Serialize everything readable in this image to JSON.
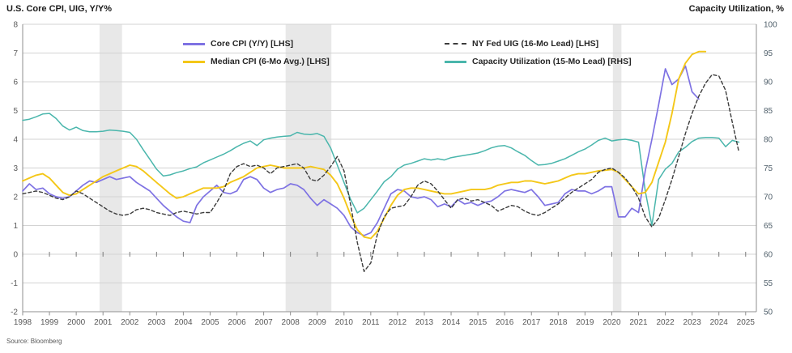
{
  "header": {
    "left_title": "U.S. Core CPI, UIG, Y/Y%",
    "right_title": "Capacity Utilization, %"
  },
  "source": "Source: Bloomberg",
  "legend": [
    {
      "label": "Core CPI (Y/Y) [LHS]",
      "color": "#7e72e3",
      "dash": false
    },
    {
      "label": "Median CPI (6-Mo Avg.) [LHS]",
      "color": "#f4c718",
      "dash": false
    },
    {
      "label": "NY Fed UIG (16-Mo Lead) [LHS]",
      "color": "#3c3c3c",
      "dash": true
    },
    {
      "label": "Capacity Utilization (15-Mo Lead) [RHS]",
      "color": "#4ab6ac",
      "dash": false
    }
  ],
  "chart_data": {
    "type": "line",
    "title": "U.S. Core CPI, UIG, Y/Y%",
    "x_axis": {
      "min": 1998,
      "max": 2025.4,
      "ticks": [
        1998,
        1999,
        2000,
        2001,
        2002,
        2003,
        2004,
        2005,
        2006,
        2007,
        2008,
        2009,
        2010,
        2011,
        2012,
        2013,
        2014,
        2015,
        2016,
        2017,
        2018,
        2019,
        2020,
        2021,
        2022,
        2023,
        2024,
        2025
      ]
    },
    "y_left": {
      "label": "U.S. Core CPI, UIG, Y/Y%",
      "min": -2,
      "max": 8,
      "ticks": [
        8,
        7,
        6,
        5,
        4,
        3,
        2,
        1,
        0,
        -1,
        -2
      ]
    },
    "y_right": {
      "label": "Capacity Utilization, %",
      "min": 50,
      "max": 100,
      "ticks": [
        100,
        95,
        90,
        85,
        80,
        75,
        70,
        65,
        60,
        55,
        50
      ]
    },
    "grid": true,
    "legend_position": "top-inside",
    "recession_bands": [
      [
        2000.87,
        2001.71
      ],
      [
        2007.82,
        2009.53
      ],
      [
        2020.04,
        2020.36
      ]
    ],
    "colors": {
      "band": "#e8e8e8",
      "grid": "#d3d3d3",
      "axis": "#8f8f8f",
      "zero_tick": "#7a7a7a"
    },
    "series": [
      {
        "name": "Capacity Utilization (15-Mo Lead) [RHS]",
        "id": "capacity-utilization",
        "axis": "right",
        "color": "#4ab6ac",
        "dash": false,
        "width": 1.5,
        "start": 1998,
        "step": 0.25,
        "values": [
          83.3,
          83.5,
          83.9,
          84.4,
          84.5,
          83.6,
          82.3,
          81.6,
          82.1,
          81.5,
          81.3,
          81.3,
          81.4,
          81.6,
          81.5,
          81.4,
          81.2,
          80.0,
          78.2,
          76.5,
          74.8,
          73.6,
          73.8,
          74.2,
          74.5,
          74.9,
          75.2,
          75.9,
          76.4,
          76.9,
          77.4,
          78.0,
          78.7,
          79.3,
          79.7,
          78.9,
          79.9,
          80.2,
          80.4,
          80.5,
          80.6,
          81.2,
          80.9,
          80.8,
          81.0,
          80.5,
          78.5,
          75.5,
          72.5,
          69.5,
          67.2,
          68.0,
          69.5,
          71.0,
          72.6,
          73.5,
          74.8,
          75.5,
          75.8,
          76.2,
          76.6,
          76.4,
          76.6,
          76.4,
          76.8,
          77.0,
          77.2,
          77.4,
          77.6,
          78.0,
          78.5,
          78.8,
          78.9,
          78.5,
          77.8,
          77.2,
          76.3,
          75.5,
          75.6,
          75.8,
          76.2,
          76.6,
          77.2,
          77.8,
          78.3,
          79.0,
          79.8,
          80.2,
          79.7,
          79.9,
          80.0,
          79.8,
          79.5,
          71.0,
          65.0,
          73.0,
          74.8,
          75.8,
          77.8,
          78.6,
          79.6,
          80.2,
          80.3,
          80.3,
          80.2,
          78.7,
          79.8,
          79.5
        ]
      },
      {
        "name": "Core CPI (Y/Y) [LHS]",
        "id": "core-cpi",
        "axis": "left",
        "color": "#7e72e3",
        "dash": false,
        "width": 1.7,
        "start": 1998,
        "step": 0.25,
        "values": [
          2.2,
          2.45,
          2.25,
          2.3,
          2.1,
          2.0,
          1.95,
          2.0,
          2.2,
          2.4,
          2.55,
          2.5,
          2.6,
          2.7,
          2.6,
          2.65,
          2.7,
          2.5,
          2.35,
          2.2,
          1.95,
          1.7,
          1.5,
          1.3,
          1.15,
          1.1,
          1.7,
          2.0,
          2.2,
          2.4,
          2.15,
          2.1,
          2.2,
          2.6,
          2.7,
          2.6,
          2.3,
          2.15,
          2.25,
          2.3,
          2.45,
          2.4,
          2.25,
          1.95,
          1.7,
          1.9,
          1.75,
          1.6,
          1.35,
          0.95,
          0.75,
          0.65,
          0.75,
          1.1,
          1.6,
          2.1,
          2.25,
          2.2,
          2.0,
          1.95,
          2.0,
          1.9,
          1.65,
          1.75,
          1.65,
          1.9,
          1.75,
          1.8,
          1.7,
          1.8,
          1.85,
          2.0,
          2.2,
          2.25,
          2.2,
          2.15,
          2.25,
          2.0,
          1.7,
          1.75,
          1.8,
          2.1,
          2.25,
          2.2,
          2.2,
          2.1,
          2.2,
          2.35,
          2.35,
          1.3,
          1.3,
          1.6,
          1.45,
          2.9,
          4.0,
          5.2,
          6.45,
          5.9,
          6.1,
          6.55,
          5.65,
          5.4
        ]
      },
      {
        "name": "Median CPI (6-Mo Avg.) [LHS]",
        "id": "median-cpi",
        "axis": "left",
        "color": "#f4c718",
        "dash": false,
        "width": 1.9,
        "start": 1998,
        "step": 0.25,
        "values": [
          2.55,
          2.65,
          2.75,
          2.8,
          2.65,
          2.4,
          2.15,
          2.05,
          2.1,
          2.25,
          2.4,
          2.55,
          2.7,
          2.8,
          2.9,
          3.0,
          3.1,
          3.05,
          2.9,
          2.7,
          2.5,
          2.3,
          2.1,
          1.95,
          2.0,
          2.1,
          2.2,
          2.3,
          2.3,
          2.3,
          2.35,
          2.5,
          2.6,
          2.7,
          2.85,
          3.0,
          3.05,
          3.1,
          3.05,
          3.0,
          3.0,
          3.0,
          3.0,
          3.05,
          3.0,
          2.95,
          2.75,
          2.45,
          1.95,
          1.35,
          0.85,
          0.6,
          0.55,
          0.8,
          1.25,
          1.7,
          2.05,
          2.25,
          2.3,
          2.3,
          2.25,
          2.2,
          2.15,
          2.1,
          2.1,
          2.15,
          2.2,
          2.25,
          2.25,
          2.25,
          2.3,
          2.4,
          2.45,
          2.5,
          2.5,
          2.55,
          2.55,
          2.5,
          2.45,
          2.5,
          2.55,
          2.65,
          2.75,
          2.8,
          2.8,
          2.85,
          2.9,
          2.92,
          2.95,
          2.85,
          2.6,
          2.35,
          2.1,
          2.15,
          2.5,
          3.2,
          3.9,
          4.9,
          6.1,
          6.65,
          6.95,
          7.05,
          7.05
        ]
      },
      {
        "name": "NY Fed UIG (16-Mo Lead) [LHS]",
        "id": "ny-fed-uig",
        "axis": "left",
        "color": "#3c3c3c",
        "dash": true,
        "width": 1.4,
        "start": 1998,
        "step": 0.25,
        "values": [
          2.1,
          2.15,
          2.2,
          2.15,
          2.05,
          1.95,
          1.9,
          2.0,
          2.2,
          2.1,
          1.95,
          1.8,
          1.65,
          1.5,
          1.4,
          1.35,
          1.4,
          1.55,
          1.6,
          1.55,
          1.45,
          1.4,
          1.35,
          1.45,
          1.5,
          1.45,
          1.4,
          1.45,
          1.45,
          1.8,
          2.2,
          2.8,
          3.05,
          3.15,
          3.05,
          3.1,
          3.0,
          2.8,
          3.0,
          3.05,
          3.1,
          3.15,
          3.0,
          2.6,
          2.55,
          2.75,
          3.05,
          3.4,
          2.9,
          1.7,
          0.4,
          -0.6,
          -0.3,
          0.7,
          1.3,
          1.6,
          1.65,
          1.7,
          2.0,
          2.4,
          2.55,
          2.45,
          2.2,
          1.9,
          1.6,
          1.9,
          1.95,
          1.85,
          1.9,
          1.8,
          1.7,
          1.5,
          1.6,
          1.7,
          1.65,
          1.5,
          1.4,
          1.35,
          1.45,
          1.6,
          1.75,
          1.95,
          2.15,
          2.3,
          2.45,
          2.6,
          2.85,
          2.95,
          3.0,
          2.85,
          2.65,
          2.35,
          1.95,
          1.3,
          0.95,
          1.25,
          1.9,
          2.6,
          3.4,
          4.2,
          4.9,
          5.5,
          5.95,
          6.25,
          6.2,
          5.7,
          4.6,
          3.55
        ]
      }
    ]
  }
}
